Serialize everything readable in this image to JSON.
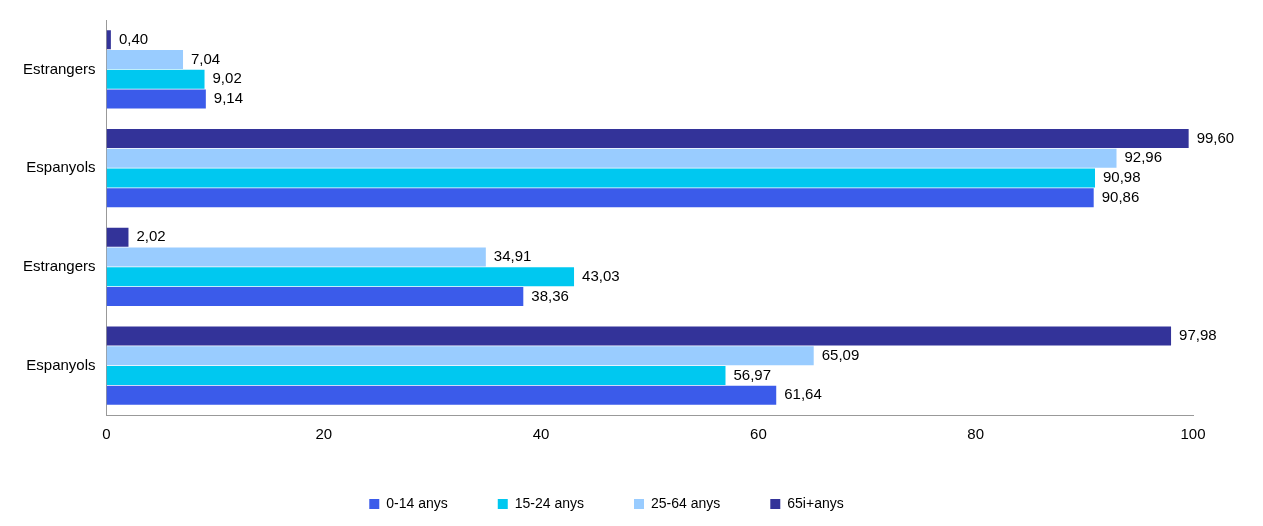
{
  "chart_data": {
    "type": "bar",
    "orientation": "horizontal",
    "categories": [
      "Estrangers",
      "Espanyols",
      "Estrangers",
      "Espanyols"
    ],
    "series": [
      {
        "name": "0-14 anys",
        "color": "#3b5bea",
        "values": [
          9.14,
          90.86,
          38.36,
          61.64
        ],
        "value_labels": [
          "9,14",
          "90,86",
          "38,36",
          "61,64"
        ]
      },
      {
        "name": "15-24 anys",
        "color": "#00c8f0",
        "values": [
          9.02,
          90.98,
          43.03,
          56.97
        ],
        "value_labels": [
          "9,02",
          "90,98",
          "43,03",
          "56,97"
        ]
      },
      {
        "name": "25-64 anys",
        "color": "#99ccff",
        "values": [
          7.04,
          92.96,
          34.91,
          65.09
        ],
        "value_labels": [
          "7,04",
          "92,96",
          "34,91",
          "65,09"
        ]
      },
      {
        "name": "65i+anys",
        "color": "#333399",
        "values": [
          0.4,
          99.6,
          2.02,
          97.98
        ],
        "value_labels": [
          "0,40",
          "99,60",
          "2,02",
          "97,98"
        ]
      }
    ],
    "xlim": [
      0,
      100
    ],
    "xticks": [
      0,
      20,
      40,
      60,
      80,
      100
    ],
    "grid": false,
    "legend": "bottom"
  }
}
